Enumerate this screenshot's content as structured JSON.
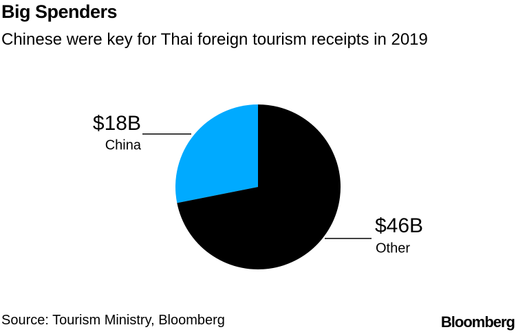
{
  "chart_data": {
    "type": "pie",
    "title": "Big Spenders",
    "subtitle": "Chinese were key for Thai foreign tourism receipts in 2019",
    "categories": [
      "China",
      "Other"
    ],
    "values": [
      18,
      46
    ],
    "value_labels": [
      "$18B",
      "$46B"
    ],
    "colors": [
      "#00aaff",
      "#000000"
    ],
    "source": "Source: Tourism Ministry, Bloomberg",
    "logo": "Bloomberg"
  }
}
